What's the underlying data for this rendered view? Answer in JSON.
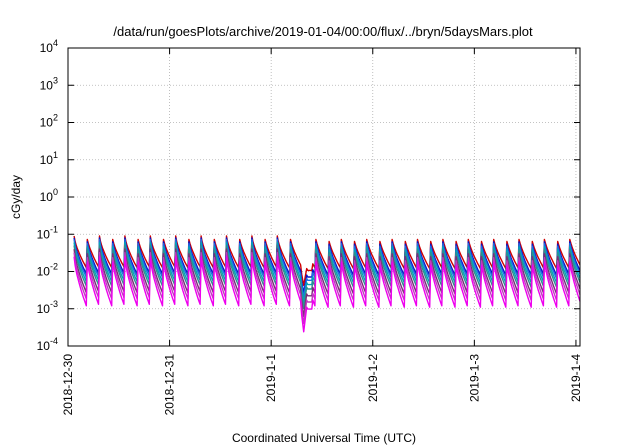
{
  "chart_data": {
    "type": "line",
    "title": "/data/run/goesPlots/archive/2019-01-04/00:00/flux/../bryn/5daysMars.plot",
    "xlabel": "Coordinated Universal Time (UTC)",
    "ylabel": "cGy/day",
    "y_scale": "log",
    "ylim_exponents": [
      -4,
      4
    ],
    "y_tick_base": "10",
    "y_tick_exponents": [
      "-4",
      "-3",
      "-2",
      "-1",
      "0",
      "1",
      "2",
      "3",
      "4"
    ],
    "x_tick_labels": [
      "2018-12-30",
      "2018-12-31",
      "2019-1-1",
      "2019-1-2",
      "2019-1-3",
      "2019-1-4"
    ],
    "xlim_days": [
      0,
      5.04
    ],
    "grid": true,
    "legend": "none",
    "pattern": {
      "period_days": 0.125,
      "start_day": 0.06,
      "end_day": 5.04,
      "dip_start_day": 2.29,
      "dip_end_day": 2.35,
      "dip_depth_decades": 0.45
    },
    "series": [
      {
        "color": "#d00000",
        "peak": 0.09,
        "trough": 0.012
      },
      {
        "color": "#0a14c8",
        "peak": 0.08,
        "trough": 0.008
      },
      {
        "color": "#1f6fe0",
        "peak": 0.072,
        "trough": 0.0065
      },
      {
        "color": "#00a5b8",
        "peak": 0.06,
        "trough": 0.005
      },
      {
        "color": "#2c8f8f",
        "peak": 0.05,
        "trough": 0.0038
      },
      {
        "color": "#7a2d7a",
        "peak": 0.04,
        "trough": 0.0025
      },
      {
        "color": "#c03cc0",
        "peak": 0.032,
        "trough": 0.0017
      },
      {
        "color": "#ee00ee",
        "peak": 0.025,
        "trough": 0.0011
      }
    ]
  }
}
